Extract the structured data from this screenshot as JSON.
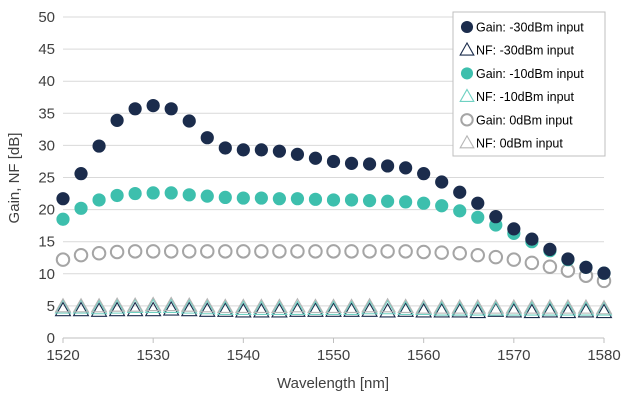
{
  "chart_data": {
    "type": "scatter",
    "title": "",
    "xlabel": "Wavelength [nm]",
    "ylabel": "Gain, NF [dB]",
    "xlim": [
      1520,
      1580
    ],
    "ylim": [
      0,
      50
    ],
    "x_ticks": [
      "1520",
      "1530",
      "1540",
      "1550",
      "1560",
      "1570",
      "1580"
    ],
    "y_ticks": [
      "0",
      "5",
      "10",
      "15",
      "20",
      "25",
      "30",
      "35",
      "40",
      "45",
      "50"
    ],
    "grid": "horizontal",
    "legend_position": "top-right",
    "x": [
      1520,
      1522,
      1524,
      1526,
      1528,
      1530,
      1532,
      1534,
      1536,
      1538,
      1540,
      1542,
      1544,
      1546,
      1548,
      1550,
      1552,
      1554,
      1556,
      1558,
      1560,
      1562,
      1564,
      1566,
      1568,
      1570,
      1572,
      1574,
      1576,
      1578,
      1580
    ],
    "series": [
      {
        "name": "Gain: -30dBm input",
        "marker": "circle-filled",
        "color": "#1b2c4c",
        "values": [
          21.7,
          25.6,
          29.9,
          33.9,
          35.7,
          36.2,
          35.7,
          33.8,
          31.2,
          29.6,
          29.3,
          29.3,
          29.1,
          28.6,
          28.0,
          27.5,
          27.2,
          27.1,
          26.8,
          26.5,
          25.6,
          24.3,
          22.7,
          21.0,
          18.9,
          17.0,
          15.4,
          13.8,
          12.3,
          11.0,
          10.1
        ]
      },
      {
        "name": "NF: -30dBm input",
        "marker": "triangle-open",
        "color": "#1b2c4c",
        "values": [
          4.3,
          4.3,
          4.2,
          4.3,
          4.3,
          4.3,
          4.4,
          4.3,
          4.2,
          4.2,
          4.1,
          4.1,
          4.1,
          4.2,
          4.2,
          4.2,
          4.2,
          4.2,
          4.1,
          4.2,
          4.1,
          4.1,
          4.1,
          4.0,
          4.2,
          4.1,
          4.0,
          4.1,
          4.0,
          4.1,
          4.0
        ]
      },
      {
        "name": "Gain: -10dBm input",
        "marker": "circle-filled",
        "color": "#3dbfad",
        "values": [
          18.5,
          20.2,
          21.5,
          22.2,
          22.5,
          22.6,
          22.6,
          22.3,
          22.1,
          21.9,
          21.8,
          21.8,
          21.7,
          21.7,
          21.6,
          21.5,
          21.5,
          21.4,
          21.3,
          21.2,
          21.0,
          20.6,
          19.8,
          18.8,
          17.6,
          16.3,
          15.0,
          13.6,
          12.2,
          11.0,
          10.1
        ]
      },
      {
        "name": "NF: -10dBm input",
        "marker": "triangle-open",
        "color": "#6fd1c2",
        "values": [
          4.7,
          4.7,
          4.6,
          4.7,
          4.8,
          4.8,
          4.8,
          4.7,
          4.6,
          4.5,
          4.5,
          4.5,
          4.5,
          4.5,
          4.5,
          4.5,
          4.5,
          4.6,
          4.6,
          4.5,
          4.5,
          4.4,
          4.4,
          4.4,
          4.4,
          4.4,
          4.4,
          4.4,
          4.4,
          4.4,
          4.4
        ]
      },
      {
        "name": "Gain: 0dBm input",
        "marker": "circle-open",
        "color": "#a5a5a5",
        "values": [
          12.2,
          12.9,
          13.2,
          13.4,
          13.5,
          13.5,
          13.5,
          13.5,
          13.5,
          13.5,
          13.5,
          13.5,
          13.5,
          13.5,
          13.5,
          13.5,
          13.5,
          13.5,
          13.5,
          13.5,
          13.4,
          13.3,
          13.2,
          12.9,
          12.6,
          12.2,
          11.7,
          11.1,
          10.5,
          9.7,
          8.9
        ]
      },
      {
        "name": "NF: 0dBm input",
        "marker": "triangle-open",
        "color": "#b5b5b5",
        "values": [
          4.9,
          4.9,
          4.9,
          5.0,
          5.0,
          5.1,
          5.1,
          5.0,
          4.9,
          4.8,
          4.8,
          4.8,
          4.8,
          4.9,
          4.8,
          4.8,
          4.8,
          4.9,
          4.9,
          4.8,
          4.7,
          4.7,
          4.7,
          4.7,
          4.7,
          4.7,
          4.7,
          4.7,
          4.7,
          4.7,
          4.6
        ]
      }
    ]
  }
}
